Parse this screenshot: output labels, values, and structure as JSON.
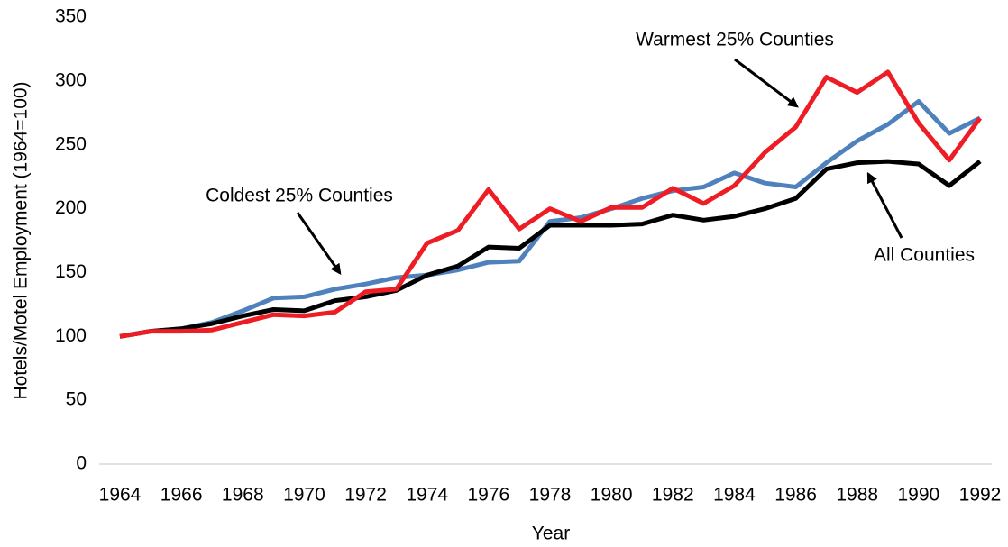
{
  "chart_data": {
    "type": "line",
    "x_label": "Year",
    "y_label": "Hotels/Motel Employment (1964=100)",
    "x": [
      1964,
      1965,
      1966,
      1967,
      1968,
      1969,
      1970,
      1971,
      1972,
      1973,
      1974,
      1975,
      1976,
      1977,
      1978,
      1979,
      1980,
      1981,
      1982,
      1983,
      1984,
      1985,
      1986,
      1987,
      1988,
      1989,
      1990,
      1991,
      1992
    ],
    "series": [
      {
        "name": "Coldest 25% Counties",
        "color": "#4f81bd",
        "values": [
          100,
          104,
          106,
          111,
          120,
          130,
          131,
          137,
          141,
          146,
          148,
          152,
          158,
          159,
          190,
          193,
          200,
          208,
          214,
          217,
          228,
          220,
          217,
          236,
          253,
          266,
          284,
          259,
          271
        ]
      },
      {
        "name": "Warmest 25% Counties",
        "color": "#ee1c24",
        "values": [
          100,
          104,
          104,
          105,
          111,
          117,
          116,
          119,
          135,
          137,
          173,
          183,
          215,
          184,
          200,
          190,
          201,
          201,
          216,
          204,
          218,
          244,
          264,
          303,
          291,
          307,
          267,
          238,
          271
        ]
      },
      {
        "name": "All Counties",
        "color": "#000000",
        "values": [
          100,
          104,
          106,
          110,
          116,
          121,
          120,
          128,
          131,
          136,
          148,
          155,
          170,
          169,
          187,
          187,
          187,
          188,
          195,
          191,
          194,
          200,
          208,
          231,
          236,
          237,
          235,
          218,
          237
        ]
      }
    ],
    "xlim": [
      1964,
      1992
    ],
    "xticks": [
      1964,
      1966,
      1968,
      1970,
      1972,
      1974,
      1976,
      1978,
      1980,
      1982,
      1984,
      1986,
      1988,
      1990,
      1992
    ],
    "ylim": [
      0,
      350
    ],
    "yticks": [
      0,
      50,
      100,
      150,
      200,
      250,
      300,
      350
    ],
    "grid": false
  }
}
